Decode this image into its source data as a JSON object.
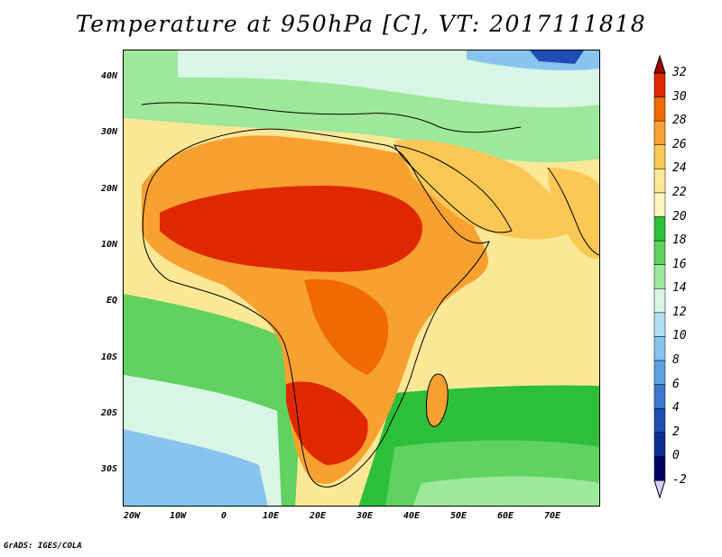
{
  "title": "Temperature at 950hPa [C], VT: 2017111818",
  "footer": "GrADS: IGES/COLA",
  "axes": {
    "lat_labels": [
      "40N",
      "30N",
      "20N",
      "10N",
      "EQ",
      "10S",
      "20S",
      "30S"
    ],
    "lon_labels": [
      "20W",
      "10W",
      "0",
      "10E",
      "20E",
      "30E",
      "40E",
      "50E",
      "60E",
      "70E"
    ]
  },
  "colorbar": {
    "labels": [
      "32",
      "30",
      "28",
      "26",
      "24",
      "22",
      "20",
      "18",
      "16",
      "14",
      "12",
      "10",
      "8",
      "6",
      "4",
      "2",
      "0",
      "-2"
    ],
    "colors": [
      "#a00000",
      "#e02800",
      "#f06a00",
      "#f8a030",
      "#fcc855",
      "#fde898",
      "#fff5c0",
      "#2ebf3a",
      "#5fd25f",
      "#9de89a",
      "#d8f5e5",
      "#aee0f5",
      "#88c4ee",
      "#5ea0e0",
      "#3c78cc",
      "#1e4eb4",
      "#0c2c96",
      "#000060",
      "#d0d0ff"
    ]
  },
  "palette": {
    "ocean": "#fde898",
    "hot": "#e02800",
    "warm": "#f8a030",
    "green": "#2ebf3a",
    "cool": "#aee0f5"
  }
}
